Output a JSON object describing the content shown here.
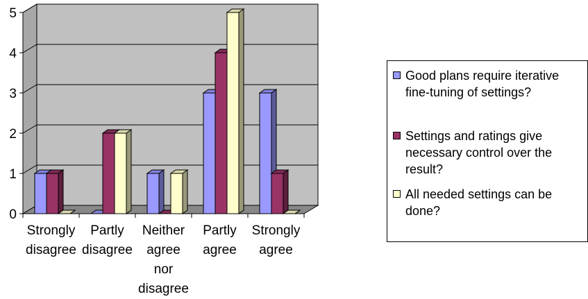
{
  "chart_data": {
    "type": "bar",
    "categories": [
      [
        "Strongly",
        "disagree"
      ],
      [
        "Partly",
        "disagree"
      ],
      [
        "Neither",
        "agree",
        "nor",
        "disagree"
      ],
      [
        "Partly",
        "agree"
      ],
      [
        "Strongly",
        "agree"
      ]
    ],
    "series": [
      {
        "name": "Good plans require iterative fine-tuning of settings?",
        "values": [
          1,
          0,
          1,
          3,
          3
        ],
        "color": "#9999FF"
      },
      {
        "name": "Settings and ratings give necessary control over the result?",
        "values": [
          1,
          2,
          0,
          4,
          1
        ],
        "color": "#993366"
      },
      {
        "name": "All needed settings can be done?",
        "values": [
          0,
          2,
          1,
          5,
          0
        ],
        "color": "#FFFFCC"
      }
    ],
    "ylim": [
      0,
      5
    ],
    "yticks": [
      "0",
      "1",
      "2",
      "3",
      "4",
      "5"
    ],
    "grid": true,
    "plot_background": "#C0C0C0",
    "legend_position": "right"
  },
  "legend": {
    "items": [
      {
        "text": "Good plans require iterative fine-tuning of settings?"
      },
      {
        "text": "Settings and ratings give necessary control over the result?"
      },
      {
        "text": "All needed settings can be done?"
      }
    ]
  }
}
